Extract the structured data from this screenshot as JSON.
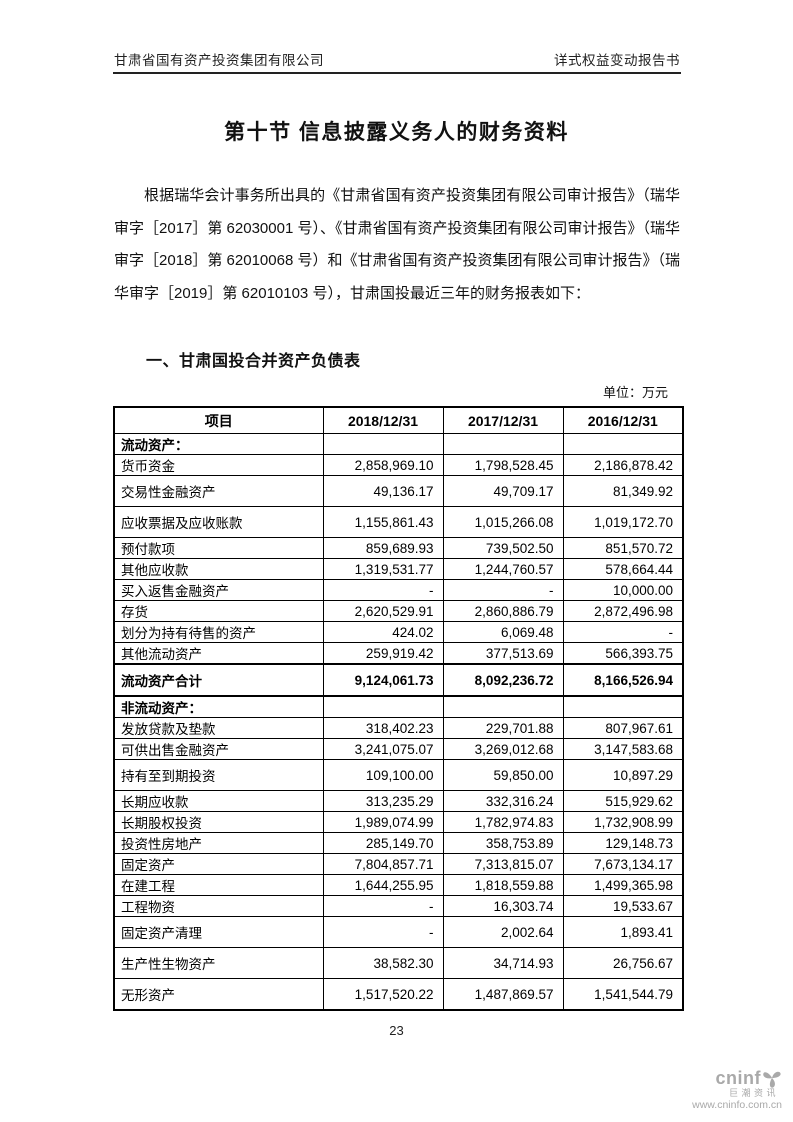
{
  "page_header": {
    "left": "甘肃省国有资产投资集团有限公司",
    "right": "详式权益变动报告书"
  },
  "title": "第十节 信息披露义务人的财务资料",
  "paragraph": "根据瑞华会计事务所出具的《甘肃省国有资产投资集团有限公司审计报告》（瑞华审字［2017］第 62030001 号）、《甘肃省国有资产投资集团有限公司审计报告》（瑞华审字［2018］第 62010068 号）和《甘肃省国有资产投资集团有限公司审计报告》（瑞华审字［2019］第 62010103 号），甘肃国投最近三年的财务报表如下：",
  "section_heading": "一、甘肃国投合并资产负债表",
  "unit_label": "单位：万元",
  "table": {
    "headers": [
      "项目",
      "2018/12/31",
      "2017/12/31",
      "2016/12/31"
    ],
    "rows": [
      {
        "label": "流动资产：",
        "values": [
          "",
          "",
          ""
        ],
        "type": "section",
        "tall": false
      },
      {
        "label": "货币资金",
        "values": [
          "2,858,969.10",
          "1,798,528.45",
          "2,186,878.42"
        ],
        "type": "data",
        "tall": false
      },
      {
        "label": "交易性金融资产",
        "values": [
          "49,136.17",
          "49,709.17",
          "81,349.92"
        ],
        "type": "data",
        "tall": true
      },
      {
        "label": "应收票据及应收账款",
        "values": [
          "1,155,861.43",
          "1,015,266.08",
          "1,019,172.70"
        ],
        "type": "data",
        "tall": true
      },
      {
        "label": "预付款项",
        "values": [
          "859,689.93",
          "739,502.50",
          "851,570.72"
        ],
        "type": "data",
        "tall": false
      },
      {
        "label": "其他应收款",
        "values": [
          "1,319,531.77",
          "1,244,760.57",
          "578,664.44"
        ],
        "type": "data",
        "tall": false
      },
      {
        "label": "买入返售金融资产",
        "values": [
          "-",
          "-",
          "10,000.00"
        ],
        "type": "data",
        "tall": false
      },
      {
        "label": "存货",
        "values": [
          "2,620,529.91",
          "2,860,886.79",
          "2,872,496.98"
        ],
        "type": "data",
        "tall": false
      },
      {
        "label": "划分为持有待售的资产",
        "values": [
          "424.02",
          "6,069.48",
          "-"
        ],
        "type": "data",
        "tall": false
      },
      {
        "label": "其他流动资产",
        "values": [
          "259,919.42",
          "377,513.69",
          "566,393.75"
        ],
        "type": "data",
        "tall": false
      },
      {
        "label": "流动资产合计",
        "values": [
          "9,124,061.73",
          "8,092,236.72",
          "8,166,526.94"
        ],
        "type": "total",
        "tall": true
      },
      {
        "label": "非流动资产：",
        "values": [
          "",
          "",
          ""
        ],
        "type": "section",
        "tall": false
      },
      {
        "label": "发放贷款及垫款",
        "values": [
          "318,402.23",
          "229,701.88",
          "807,967.61"
        ],
        "type": "data",
        "tall": false
      },
      {
        "label": "可供出售金融资产",
        "values": [
          "3,241,075.07",
          "3,269,012.68",
          "3,147,583.68"
        ],
        "type": "data",
        "tall": false
      },
      {
        "label": "持有至到期投资",
        "values": [
          "109,100.00",
          "59,850.00",
          "10,897.29"
        ],
        "type": "data",
        "tall": true
      },
      {
        "label": "长期应收款",
        "values": [
          "313,235.29",
          "332,316.24",
          "515,929.62"
        ],
        "type": "data",
        "tall": false
      },
      {
        "label": "长期股权投资",
        "values": [
          "1,989,074.99",
          "1,782,974.83",
          "1,732,908.99"
        ],
        "type": "data",
        "tall": false
      },
      {
        "label": "投资性房地产",
        "values": [
          "285,149.70",
          "358,753.89",
          "129,148.73"
        ],
        "type": "data",
        "tall": false
      },
      {
        "label": "固定资产",
        "values": [
          "7,804,857.71",
          "7,313,815.07",
          "7,673,134.17"
        ],
        "type": "data",
        "tall": false
      },
      {
        "label": "在建工程",
        "values": [
          "1,644,255.95",
          "1,818,559.88",
          "1,499,365.98"
        ],
        "type": "data",
        "tall": false
      },
      {
        "label": "工程物资",
        "values": [
          "-",
          "16,303.74",
          "19,533.67"
        ],
        "type": "data",
        "tall": false
      },
      {
        "label": "固定资产清理",
        "values": [
          "-",
          "2,002.64",
          "1,893.41"
        ],
        "type": "data",
        "tall": true
      },
      {
        "label": "生产性生物资产",
        "values": [
          "38,582.30",
          "34,714.93",
          "26,756.67"
        ],
        "type": "data",
        "tall": true
      },
      {
        "label": "无形资产",
        "values": [
          "1,517,520.22",
          "1,487,869.57",
          "1,541,544.79"
        ],
        "type": "data",
        "tall": true
      }
    ]
  },
  "footer": {
    "page_number": "23"
  },
  "watermark": {
    "logo_text": "cninf",
    "name": "巨潮资讯",
    "url": "www.cninfo.com.cn",
    "color": "#a9a9a9"
  }
}
